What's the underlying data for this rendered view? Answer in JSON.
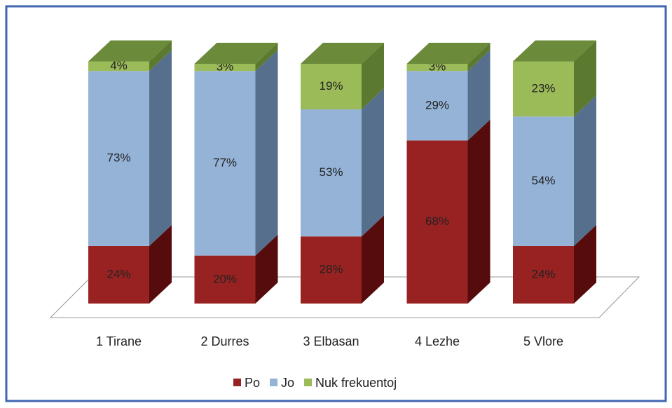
{
  "chart_data": {
    "type": "bar3d_stacked",
    "categories": [
      "1 Tirane",
      "2 Durres",
      "3 Elbasan",
      "4 Lezhe",
      "5 Vlore"
    ],
    "series": [
      {
        "name": "Po",
        "color": "#982222",
        "side": "#560c0c",
        "top": "#7a1717",
        "values": [
          24,
          20,
          28,
          68,
          24
        ],
        "value_labels": [
          "24%",
          "20%",
          "28%",
          "68%",
          "24%"
        ]
      },
      {
        "name": "Jo",
        "color": "#95b3d7",
        "side": "#566f8d",
        "top": "#7893b5",
        "values": [
          73,
          77,
          53,
          29,
          54
        ],
        "value_labels": [
          "73%",
          "77%",
          "53%",
          "29%",
          "54%"
        ]
      },
      {
        "name": "Nuk frekuentoj",
        "color": "#9bbb59",
        "side": "#5c7a2f",
        "top": "#6b8a3a",
        "values": [
          4,
          3,
          19,
          3,
          23
        ],
        "value_labels": [
          "4%",
          "3%",
          "19%",
          "3%",
          "23%"
        ]
      }
    ]
  }
}
